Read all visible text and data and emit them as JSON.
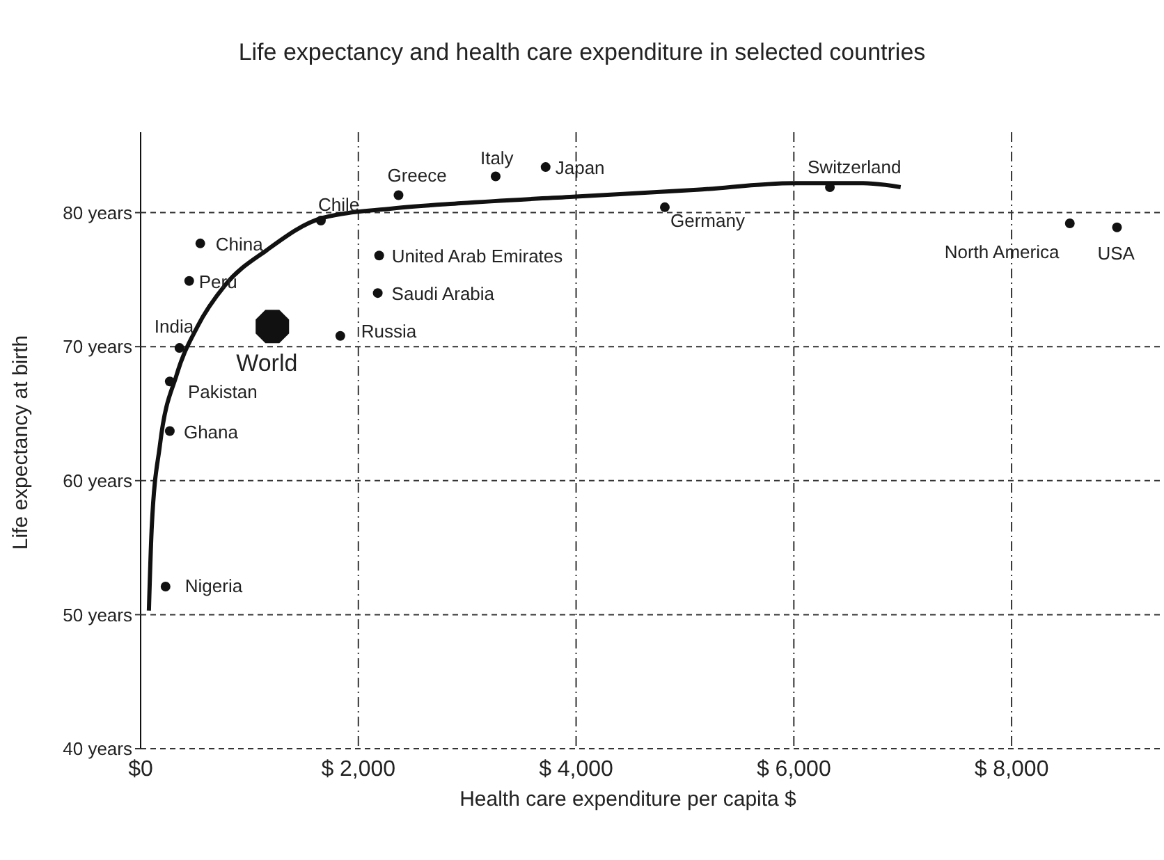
{
  "chart_data": {
    "type": "scatter",
    "title": "Life expectancy and health care expenditure in selected countries",
    "xlabel": "Health care expenditure per capita  $",
    "ylabel": "Life expectancy at birth",
    "xlim": [
      0,
      9400
    ],
    "ylim": [
      40,
      86
    ],
    "xticks": [
      {
        "value": 0,
        "label": "$0"
      },
      {
        "value": 2000,
        "label": "$ 2,000"
      },
      {
        "value": 4000,
        "label": "$ 4,000"
      },
      {
        "value": 6000,
        "label": "$ 6,000"
      },
      {
        "value": 8000,
        "label": "$ 8,000"
      }
    ],
    "yticks": [
      {
        "value": 40,
        "label": "40 years"
      },
      {
        "value": 50,
        "label": "50 years"
      },
      {
        "value": 60,
        "label": "60 years"
      },
      {
        "value": 70,
        "label": "70 years"
      },
      {
        "value": 80,
        "label": "80 years"
      }
    ],
    "grid": true,
    "series": [
      {
        "color": "#111111",
        "marker": "circle",
        "x": [
          229,
          268,
          268,
          357,
          446,
          548,
          1834,
          1656,
          2369,
          2191,
          2178,
          3261,
          3720,
          4815,
          6331,
          8535,
          8968
        ],
        "values": [
          52.1,
          63.7,
          67.4,
          69.9,
          74.9,
          77.7,
          70.8,
          79.4,
          81.3,
          76.8,
          74.0,
          82.7,
          83.4,
          80.4,
          81.9,
          79.2,
          78.9
        ]
      },
      {
        "name": "World",
        "color": "#111111",
        "x": [
          1210
        ],
        "values": [
          71.5
        ]
      },
      {
        "type": "line",
        "color": "#111111",
        "marker": "none",
        "x": [
          76,
          102,
          178,
          331,
          522,
          777,
          1159,
          1669,
          2306,
          2943,
          4000,
          5108,
          6000,
          6637,
          6981
        ],
        "values": [
          50.3,
          56.5,
          62.7,
          67.9,
          71.5,
          74.6,
          77.2,
          79.6,
          80.3,
          80.7,
          81.2,
          81.7,
          82.2,
          82.2,
          81.9
        ]
      }
    ],
    "annotations": [
      {
        "text": "Nigeria",
        "x": 229,
        "y": 52.1
      },
      {
        "text": "Ghana",
        "x": 268,
        "y": 63.7
      },
      {
        "text": "Pakistan",
        "x": 268,
        "y": 67.4
      },
      {
        "text": "India",
        "x": 357,
        "y": 69.9
      },
      {
        "text": "Peru",
        "x": 446,
        "y": 74.9
      },
      {
        "text": "China",
        "x": 548,
        "y": 77.7
      },
      {
        "text": "Russia",
        "x": 1834,
        "y": 70.8
      },
      {
        "text": "Chile",
        "x": 1656,
        "y": 79.4
      },
      {
        "text": "Greece",
        "x": 2369,
        "y": 81.3
      },
      {
        "text": "United Arab Emirates",
        "x": 2191,
        "y": 76.8
      },
      {
        "text": "Saudi Arabia",
        "x": 2178,
        "y": 74.0
      },
      {
        "text": "Italy",
        "x": 3261,
        "y": 82.7
      },
      {
        "text": "Japan",
        "x": 3720,
        "y": 83.4
      },
      {
        "text": "Germany",
        "x": 4815,
        "y": 80.4
      },
      {
        "text": "Switzerland",
        "x": 6331,
        "y": 81.9
      },
      {
        "text": "North America",
        "x": 8535,
        "y": 79.2
      },
      {
        "text": "USA",
        "x": 8968,
        "y": 78.9
      }
    ]
  }
}
